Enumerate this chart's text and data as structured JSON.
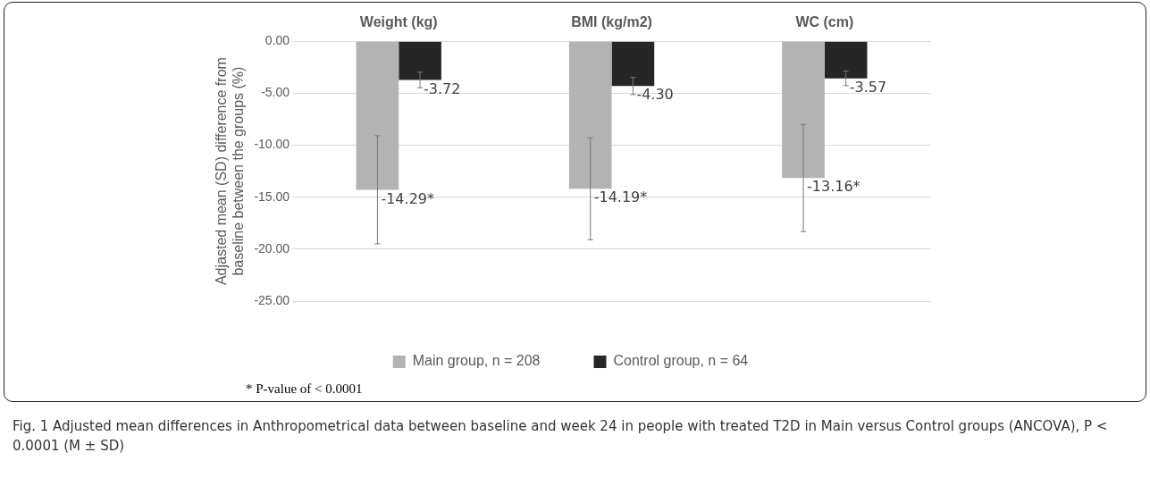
{
  "chart_data": {
    "type": "bar",
    "categories": [
      "Weight (kg)",
      "BMI (kg/m2)",
      "WC (cm)"
    ],
    "ylabel": "Adjasted mean (SD) difference from baseline between the groups (%)",
    "series": [
      {
        "name": "Main group, n = 208",
        "color": "#b3b3b3",
        "values": [
          -14.29,
          -14.19,
          -13.16
        ],
        "errors": [
          5.2,
          4.9,
          5.15
        ],
        "value_labels": [
          "-14.29*",
          "-14.19*",
          "-13.16*"
        ]
      },
      {
        "name": "Control group, n = 64",
        "color": "#262626",
        "values": [
          -3.72,
          -4.3,
          -3.57
        ],
        "errors": [
          0.75,
          0.83,
          0.7
        ],
        "value_labels": [
          "-3.72",
          "-4.30",
          "-3.57"
        ]
      }
    ],
    "ylim": [
      -25,
      0
    ],
    "yticks": [
      {
        "value": -25,
        "label": "-25.00"
      },
      {
        "value": -20,
        "label": "-20.00"
      },
      {
        "value": -15,
        "label": "-15.00"
      },
      {
        "value": -10,
        "label": "-10.00"
      },
      {
        "value": -5,
        "label": "-5.00"
      },
      {
        "value": 0,
        "label": "0.00"
      }
    ],
    "grid": "y",
    "legend": "bottom",
    "annotations": [
      "* P-value of < 0.0001",
      "Fig. 1 Adjusted mean differences in Anthropometrical data between baseline and week 24 in people with treated T2D in Main versus Control groups (ANCOVA), P < 0.0001 (M ± SD)"
    ]
  }
}
